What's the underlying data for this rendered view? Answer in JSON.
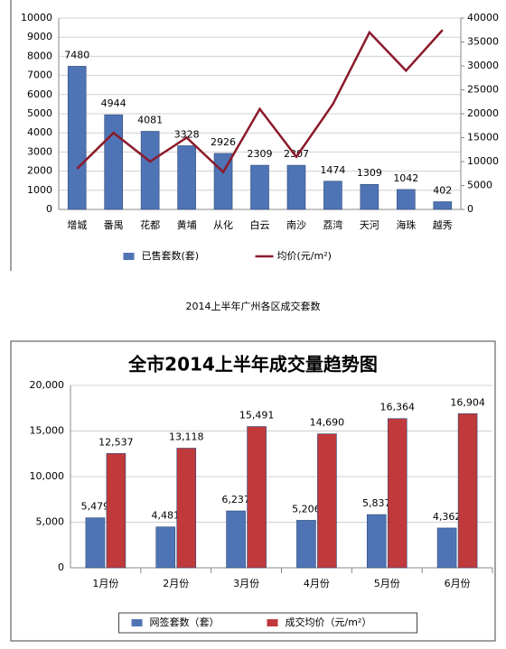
{
  "chart_data": [
    {
      "type": "combo",
      "caption": "2014上半年广州各区成交套数",
      "categories": [
        "增城",
        "番禺",
        "花都",
        "黄埔",
        "从化",
        "白云",
        "南沙",
        "荔湾",
        "天河",
        "海珠",
        "越秀"
      ],
      "series": [
        {
          "name": "已售套数(套)",
          "type": "bar",
          "color": "#4f74b5",
          "values": [
            7480,
            4944,
            4081,
            3328,
            2926,
            2309,
            2307,
            1474,
            1309,
            1042,
            402
          ]
        },
        {
          "name": "均价(元/m²)",
          "type": "line",
          "axis": "y2",
          "color": "#8b1a2b",
          "values": [
            8500,
            16000,
            10000,
            15000,
            7800,
            21000,
            11000,
            22000,
            37000,
            29000,
            37500
          ]
        }
      ],
      "ylim": [
        0,
        10000
      ],
      "yticks": [
        0,
        1000,
        2000,
        3000,
        4000,
        5000,
        6000,
        7000,
        8000,
        9000,
        10000
      ],
      "y2lim": [
        0,
        40000
      ],
      "y2ticks": [
        0,
        5000,
        10000,
        15000,
        20000,
        25000,
        30000,
        35000,
        40000
      ],
      "grid": true,
      "legend": "bottom"
    },
    {
      "type": "bar",
      "title": "全市2014上半年成交量趋势图",
      "categories": [
        "1月份",
        "2月份",
        "3月份",
        "4月份",
        "5月份",
        "6月份"
      ],
      "series": [
        {
          "name": "网签套数（套）",
          "color": "#4f74b5",
          "values": [
            5479,
            4481,
            6237,
            5206,
            5837,
            4362
          ],
          "value_labels": [
            "5,479",
            "4,481",
            "6,237",
            "5,206",
            "5,837",
            "4,362"
          ]
        },
        {
          "name": "成交均价（元/m²）",
          "color": "#c0393b",
          "values": [
            12537,
            13118,
            15491,
            14690,
            16364,
            16904
          ],
          "value_labels": [
            "12,537",
            "13,118",
            "15,491",
            "14,690",
            "16,364",
            "16,904"
          ]
        }
      ],
      "ylim": [
        0,
        20000
      ],
      "yticks": [
        0,
        {
          "value": 5000,
          "label": "5,000"
        },
        {
          "value": 10000,
          "label": "10,000"
        },
        {
          "value": 15000,
          "label": "15,000"
        },
        {
          "value": 20000,
          "label": "20,000"
        }
      ],
      "grid": true,
      "legend": "bottom"
    }
  ]
}
